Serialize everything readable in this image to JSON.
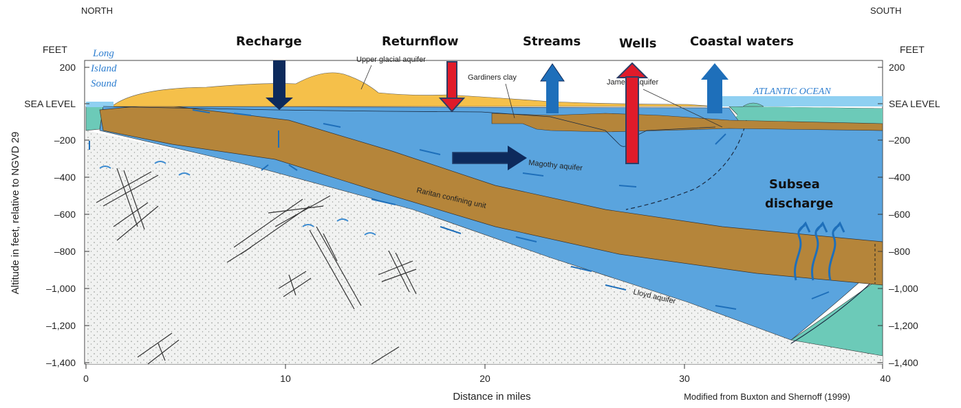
{
  "compass": {
    "north": "NORTH",
    "south": "SOUTH"
  },
  "axes": {
    "y_unit_left": "FEET",
    "y_unit_right": "FEET",
    "y_label": "Altitude in feet, relative to NGVD 29",
    "x_label": "Distance in miles",
    "credit": "Modified from Buxton and Shernoff (1999)",
    "y_ticks": [
      "200",
      "SEA LEVEL",
      "–200",
      "–400",
      "–600",
      "–800",
      "–1,000",
      "–1,200",
      "–1,400"
    ],
    "x_ticks": [
      "0",
      "10",
      "20",
      "30",
      "40"
    ]
  },
  "flows": {
    "recharge": "Recharge",
    "returnflow": "Returnflow",
    "streams": "Streams",
    "wells": "Wells",
    "coastal": "Coastal waters",
    "subsea_line1": "Subsea",
    "subsea_line2": "discharge"
  },
  "water_bodies": {
    "sound_line1": "Long",
    "sound_line2": "Island",
    "sound_line3": "Sound",
    "ocean": "ATLANTIC OCEAN"
  },
  "units": {
    "upper_glacial": "Upper glacial aquifer",
    "gardiners": "Gardiners clay",
    "jameco": "Jameco aquifer",
    "magothy": "Magothy aquifer",
    "raritan": "Raritan confining unit",
    "lloyd": "Lloyd aquifer"
  },
  "colors": {
    "upper_glacial": "#f5c04a",
    "aquifer_blue": "#5aa4de",
    "clay_brown": "#b5853a",
    "saltwater_green": "#6ccab8",
    "bedrock": "#eef0ee",
    "arrow_navy": "#0d2a5c",
    "arrow_red": "#e01b2a",
    "arrow_blue": "#1e6fba"
  }
}
